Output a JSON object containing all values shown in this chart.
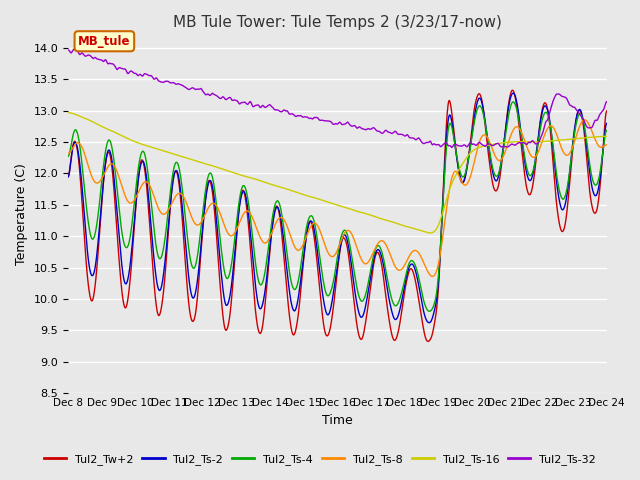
{
  "title": "MB Tule Tower: Tule Temps 2 (3/23/17-now)",
  "xlabel": "Time",
  "ylabel": "Temperature (C)",
  "ylim": [
    8.5,
    14.2
  ],
  "xlim": [
    0,
    16
  ],
  "xtick_labels": [
    "Dec 8",
    "Dec 9",
    "Dec 10",
    "Dec 11",
    "Dec 12",
    "Dec 13",
    "Dec 14",
    "Dec 15",
    "Dec 16",
    "Dec 17",
    "Dec 18",
    "Dec 19",
    "Dec 20",
    "Dec 21",
    "Dec 22",
    "Dec 23",
    "Dec 24"
  ],
  "background_color": "#e8e8e8",
  "plot_bg_color": "#e8e8e8",
  "grid_color": "#ffffff",
  "legend_label": "MB_tule",
  "series": [
    {
      "name": "Tul2_Tw+2",
      "color": "#cc0000"
    },
    {
      "name": "Tul2_Ts-2",
      "color": "#0000cc"
    },
    {
      "name": "Tul2_Ts-4",
      "color": "#00aa00"
    },
    {
      "name": "Tul2_Ts-8",
      "color": "#ff8800"
    },
    {
      "name": "Tul2_Ts-16",
      "color": "#cccc00"
    },
    {
      "name": "Tul2_Ts-32",
      "color": "#9900cc"
    }
  ]
}
